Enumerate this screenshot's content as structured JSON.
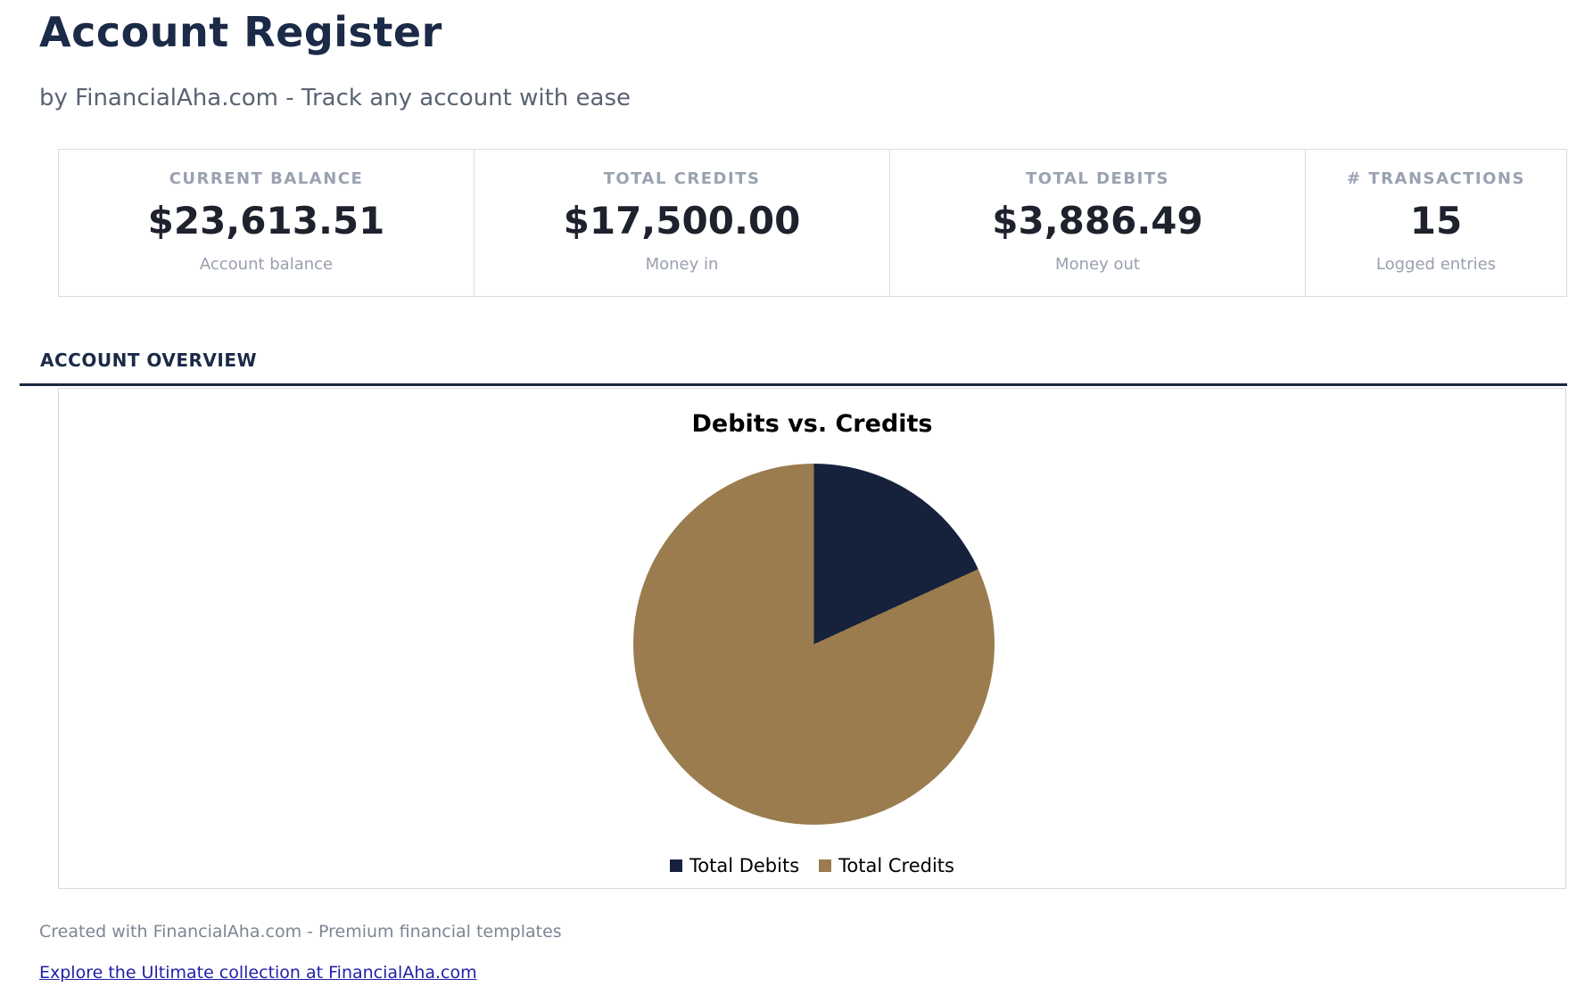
{
  "header": {
    "title": "Account Register",
    "subtitle": "by FinancialAha.com - Track any account with ease"
  },
  "stats": {
    "cards": [
      {
        "label": "CURRENT BALANCE",
        "value": "$23,613.51",
        "sublabel": "Account balance"
      },
      {
        "label": "TOTAL CREDITS",
        "value": "$17,500.00",
        "sublabel": "Money in"
      },
      {
        "label": "TOTAL DEBITS",
        "value": "$3,886.49",
        "sublabel": "Money out"
      },
      {
        "label": "# TRANSACTIONS",
        "value": "15",
        "sublabel": "Logged entries"
      }
    ]
  },
  "section": {
    "title": "ACCOUNT OVERVIEW"
  },
  "chart_data": {
    "type": "pie",
    "title": "Debits vs. Credits",
    "slices": [
      {
        "label": "Total Debits",
        "value": 3886.49,
        "color": "#16223c"
      },
      {
        "label": "Total Credits",
        "value": 17500.0,
        "color": "#9a7c4e"
      }
    ],
    "start_angle_deg": 0,
    "direction": "clockwise",
    "legend_position": "bottom"
  },
  "footer": {
    "credit": "Created with FinancialAha.com - Premium financial templates",
    "link_text": "Explore the Ultimate collection at FinancialAha.com"
  },
  "colors": {
    "accent_navy": "#1b2a47",
    "value_text": "#1e222d",
    "muted_text": "#9aa2b1",
    "card_border": "#d9dce1",
    "chart_border": "#d9d9d9",
    "link": "#201fa9"
  }
}
